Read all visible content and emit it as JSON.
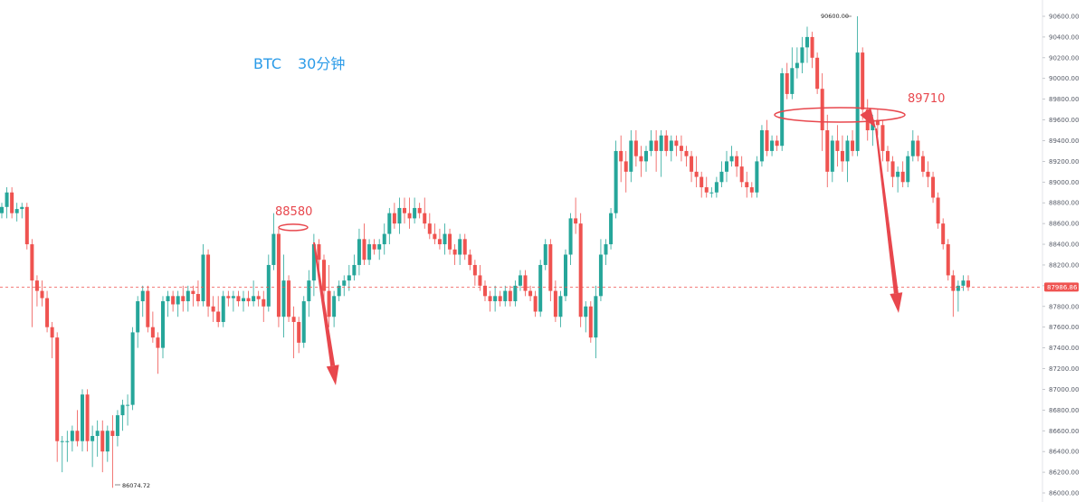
{
  "chart_data": {
    "type": "candlestick",
    "title": "BTC",
    "timeframe": "30分钟",
    "ylim": [
      86000,
      90700
    ],
    "y_ticks": [
      86000,
      86200,
      86400,
      86600,
      86800,
      87000,
      87200,
      87400,
      87600,
      87800,
      88000,
      88200,
      88400,
      88600,
      88800,
      89000,
      89200,
      89400,
      89600,
      89800,
      90000,
      90200,
      90400,
      90600
    ],
    "y_tick_labels": [
      "86000.00",
      "86200.00",
      "86400.00",
      "86600.00",
      "86800.00",
      "87000.00",
      "87200.00",
      "87400.00",
      "87600.00",
      "87800.00",
      "88000.00",
      "88200.00",
      "88400.00",
      "88600.00",
      "88800.00",
      "89000.00",
      "89200.00",
      "89400.00",
      "89600.00",
      "89800.00",
      "90000.00",
      "90200.00",
      "90400.00",
      "90600.00"
    ],
    "current_price": 87986.86,
    "current_price_label": "87986.86",
    "high_label": "90600.00",
    "high_value": 90600,
    "low_label": "86074.72",
    "low_value": 86074.72,
    "annotations": [
      {
        "text": "88580",
        "value": 88580
      },
      {
        "text": "89710",
        "value": 89710
      }
    ],
    "colors": {
      "up": "#26a69a",
      "down": "#ef5350",
      "title": "#2b9be8",
      "annotation": "#e8474d",
      "current_price_line": "#ef5350"
    },
    "candles": [
      [
        88700,
        88800,
        88650,
        88760
      ],
      [
        88760,
        88950,
        88650,
        88900
      ],
      [
        88900,
        88950,
        88650,
        88700
      ],
      [
        88700,
        88800,
        88620,
        88740
      ],
      [
        88740,
        88800,
        88650,
        88760
      ],
      [
        88760,
        88800,
        88350,
        88400
      ],
      [
        88400,
        88450,
        87600,
        88050
      ],
      [
        88050,
        88100,
        87800,
        87950
      ],
      [
        87950,
        88050,
        87800,
        87880
      ],
      [
        87880,
        87950,
        87550,
        87600
      ],
      [
        87600,
        87650,
        87300,
        87500
      ],
      [
        87500,
        87550,
        86300,
        86500
      ],
      [
        86500,
        86550,
        86200,
        86500
      ],
      [
        86500,
        86600,
        86300,
        86500
      ],
      [
        86500,
        86650,
        86400,
        86600
      ],
      [
        86600,
        86800,
        86450,
        86500
      ],
      [
        86500,
        87000,
        86400,
        86950
      ],
      [
        86950,
        87000,
        86400,
        86500
      ],
      [
        86500,
        86650,
        86250,
        86550
      ],
      [
        86550,
        86700,
        86350,
        86600
      ],
      [
        86600,
        86700,
        86200,
        86400
      ],
      [
        86400,
        86650,
        86300,
        86600
      ],
      [
        86600,
        86750,
        86050,
        86550
      ],
      [
        86550,
        86800,
        86450,
        86750
      ],
      [
        86750,
        86900,
        86600,
        86850
      ],
      [
        86850,
        86950,
        86650,
        86850
      ],
      [
        86850,
        87600,
        86800,
        87550
      ],
      [
        87550,
        87900,
        87400,
        87850
      ],
      [
        87850,
        88000,
        87700,
        87950
      ],
      [
        87950,
        88000,
        87550,
        87600
      ],
      [
        87600,
        87750,
        87450,
        87500
      ],
      [
        87500,
        87550,
        87150,
        87400
      ],
      [
        87400,
        87900,
        87300,
        87850
      ],
      [
        87850,
        87950,
        87700,
        87900
      ],
      [
        87900,
        87950,
        87750,
        87820
      ],
      [
        87820,
        87950,
        87700,
        87900
      ],
      [
        87900,
        88000,
        87750,
        87850
      ],
      [
        87850,
        88000,
        87750,
        87950
      ],
      [
        87950,
        88000,
        87800,
        87920
      ],
      [
        87920,
        88050,
        87800,
        87850
      ],
      [
        87850,
        88400,
        87800,
        88300
      ],
      [
        88300,
        88350,
        87700,
        87800
      ],
      [
        87800,
        87900,
        87650,
        87750
      ],
      [
        87750,
        87900,
        87600,
        87650
      ],
      [
        87650,
        87950,
        87600,
        87900
      ],
      [
        87900,
        87950,
        87800,
        87880
      ],
      [
        87880,
        87950,
        87750,
        87900
      ],
      [
        87900,
        87950,
        87800,
        87850
      ],
      [
        87850,
        87950,
        87750,
        87880
      ],
      [
        87880,
        87950,
        87800,
        87850
      ],
      [
        87850,
        88050,
        87800,
        87900
      ],
      [
        87900,
        87950,
        87800,
        87870
      ],
      [
        87870,
        87950,
        87650,
        87800
      ],
      [
        87800,
        88300,
        87750,
        88200
      ],
      [
        88200,
        88700,
        88150,
        88500
      ],
      [
        88500,
        88550,
        87600,
        87700
      ],
      [
        87700,
        88300,
        87500,
        88050
      ],
      [
        88050,
        88100,
        87650,
        87700
      ],
      [
        87700,
        87800,
        87300,
        87650
      ],
      [
        87650,
        87700,
        87350,
        87450
      ],
      [
        87450,
        87900,
        87400,
        87850
      ],
      [
        87850,
        88150,
        87700,
        88050
      ],
      [
        88050,
        88500,
        87900,
        88400
      ],
      [
        88400,
        88450,
        88100,
        88250
      ],
      [
        88250,
        88300,
        87850,
        87950
      ],
      [
        87950,
        88200,
        87600,
        87700
      ],
      [
        87700,
        87950,
        87600,
        87900
      ],
      [
        87900,
        88050,
        87850,
        88000
      ],
      [
        88000,
        88100,
        87900,
        88050
      ],
      [
        88050,
        88200,
        87950,
        88100
      ],
      [
        88100,
        88300,
        88050,
        88200
      ],
      [
        88200,
        88550,
        88100,
        88450
      ],
      [
        88450,
        88600,
        88200,
        88250
      ],
      [
        88250,
        88450,
        88200,
        88400
      ],
      [
        88400,
        88450,
        88300,
        88350
      ],
      [
        88350,
        88450,
        88250,
        88400
      ],
      [
        88400,
        88600,
        88300,
        88500
      ],
      [
        88500,
        88750,
        88400,
        88700
      ],
      [
        88700,
        88800,
        88550,
        88600
      ],
      [
        88600,
        88850,
        88500,
        88750
      ],
      [
        88750,
        88850,
        88600,
        88700
      ],
      [
        88700,
        88850,
        88550,
        88650
      ],
      [
        88650,
        88850,
        88600,
        88750
      ],
      [
        88750,
        88800,
        88650,
        88700
      ],
      [
        88700,
        88850,
        88550,
        88600
      ],
      [
        88600,
        88700,
        88450,
        88500
      ],
      [
        88500,
        88600,
        88400,
        88450
      ],
      [
        88450,
        88550,
        88350,
        88400
      ],
      [
        88400,
        88600,
        88300,
        88500
      ],
      [
        88500,
        88550,
        88300,
        88350
      ],
      [
        88350,
        88400,
        88200,
        88300
      ],
      [
        88300,
        88500,
        88200,
        88450
      ],
      [
        88450,
        88500,
        88250,
        88300
      ],
      [
        88300,
        88350,
        88150,
        88200
      ],
      [
        88200,
        88250,
        88000,
        88100
      ],
      [
        88100,
        88200,
        87950,
        88000
      ],
      [
        88000,
        88050,
        87850,
        87900
      ],
      [
        87900,
        87950,
        87750,
        87850
      ],
      [
        87850,
        88000,
        87750,
        87900
      ],
      [
        87900,
        87950,
        87800,
        87850
      ],
      [
        87850,
        88000,
        87800,
        87950
      ],
      [
        87950,
        88000,
        87800,
        87850
      ],
      [
        87850,
        88050,
        87800,
        88000
      ],
      [
        88000,
        88150,
        87950,
        88100
      ],
      [
        88100,
        88150,
        87900,
        87950
      ],
      [
        87950,
        88000,
        87850,
        87900
      ],
      [
        87900,
        87950,
        87700,
        87750
      ],
      [
        87750,
        88250,
        87700,
        88200
      ],
      [
        88200,
        88450,
        88150,
        88400
      ],
      [
        88400,
        88450,
        87850,
        87950
      ],
      [
        87950,
        88050,
        87650,
        87700
      ],
      [
        87700,
        87950,
        87600,
        87900
      ],
      [
        87900,
        88350,
        87850,
        88300
      ],
      [
        88300,
        88700,
        88200,
        88650
      ],
      [
        88650,
        88850,
        88500,
        88600
      ],
      [
        88600,
        88700,
        87600,
        87700
      ],
      [
        87700,
        87850,
        87550,
        87800
      ],
      [
        87800,
        87850,
        87450,
        87500
      ],
      [
        87500,
        88000,
        87300,
        87900
      ],
      [
        87900,
        88450,
        87850,
        88300
      ],
      [
        88300,
        88450,
        88200,
        88400
      ],
      [
        88400,
        88750,
        88350,
        88700
      ],
      [
        88700,
        89400,
        88650,
        89300
      ],
      [
        89300,
        89450,
        89000,
        89200
      ],
      [
        89200,
        89300,
        88900,
        89100
      ],
      [
        89100,
        89500,
        89000,
        89400
      ],
      [
        89400,
        89500,
        89150,
        89250
      ],
      [
        89250,
        89350,
        89050,
        89200
      ],
      [
        89200,
        89350,
        89100,
        89300
      ],
      [
        89300,
        89500,
        89250,
        89400
      ],
      [
        89400,
        89500,
        89100,
        89300
      ],
      [
        89300,
        89500,
        89050,
        89450
      ],
      [
        89450,
        89500,
        89250,
        89300
      ],
      [
        89300,
        89450,
        89200,
        89400
      ],
      [
        89400,
        89450,
        89250,
        89350
      ],
      [
        89350,
        89450,
        89200,
        89300
      ],
      [
        89300,
        89350,
        89150,
        89250
      ],
      [
        89250,
        89300,
        89000,
        89100
      ],
      [
        89100,
        89250,
        88950,
        89050
      ],
      [
        89050,
        89100,
        88850,
        88950
      ],
      [
        88950,
        89050,
        88850,
        88900
      ],
      [
        88900,
        88950,
        88850,
        88900
      ],
      [
        88900,
        89050,
        88850,
        89000
      ],
      [
        89000,
        89200,
        88950,
        89100
      ],
      [
        89100,
        89300,
        89000,
        89200
      ],
      [
        89200,
        89350,
        89150,
        89250
      ],
      [
        89250,
        89300,
        89050,
        89150
      ],
      [
        89150,
        89250,
        88950,
        89000
      ],
      [
        89000,
        89100,
        88850,
        88950
      ],
      [
        88950,
        89000,
        88850,
        88900
      ],
      [
        88900,
        89250,
        88850,
        89200
      ],
      [
        89200,
        89550,
        89150,
        89500
      ],
      [
        89500,
        89600,
        89250,
        89300
      ],
      [
        89300,
        89450,
        89250,
        89400
      ],
      [
        89400,
        89450,
        89300,
        89350
      ],
      [
        89350,
        90100,
        89300,
        90050
      ],
      [
        90050,
        90150,
        89800,
        89850
      ],
      [
        89850,
        90300,
        89800,
        90100
      ],
      [
        90100,
        90300,
        90000,
        90150
      ],
      [
        90150,
        90400,
        90050,
        90300
      ],
      [
        90300,
        90500,
        90150,
        90400
      ],
      [
        90400,
        90450,
        90100,
        90200
      ],
      [
        90200,
        90250,
        89850,
        89900
      ],
      [
        89900,
        90050,
        89300,
        89500
      ],
      [
        89500,
        89650,
        88950,
        89100
      ],
      [
        89100,
        89450,
        89000,
        89400
      ],
      [
        89400,
        89550,
        89150,
        89300
      ],
      [
        89300,
        89450,
        89100,
        89200
      ],
      [
        89200,
        89450,
        89000,
        89400
      ],
      [
        89400,
        89500,
        89250,
        89300
      ],
      [
        89300,
        90600,
        89250,
        90250
      ],
      [
        90250,
        90300,
        89600,
        89700
      ],
      [
        89700,
        89800,
        89400,
        89500
      ],
      [
        89500,
        89650,
        89350,
        89600
      ],
      [
        89600,
        89700,
        89450,
        89550
      ],
      [
        89550,
        89600,
        89200,
        89300
      ],
      [
        89300,
        89350,
        89100,
        89200
      ],
      [
        89200,
        89250,
        88950,
        89050
      ],
      [
        89050,
        89150,
        88900,
        89100
      ],
      [
        89100,
        89200,
        88950,
        89000
      ],
      [
        89000,
        89300,
        88950,
        89250
      ],
      [
        89250,
        89500,
        89200,
        89400
      ],
      [
        89400,
        89450,
        89200,
        89250
      ],
      [
        89250,
        89300,
        89050,
        89100
      ],
      [
        89100,
        89200,
        88950,
        89050
      ],
      [
        89050,
        89100,
        88800,
        88850
      ],
      [
        88850,
        88900,
        88550,
        88600
      ],
      [
        88600,
        88650,
        88350,
        88400
      ],
      [
        88400,
        88450,
        88050,
        88100
      ],
      [
        88100,
        88150,
        87700,
        87950
      ],
      [
        87950,
        88050,
        87750,
        88000
      ],
      [
        88000,
        88100,
        87950,
        88050
      ],
      [
        88050,
        88100,
        87950,
        87987
      ]
    ]
  }
}
